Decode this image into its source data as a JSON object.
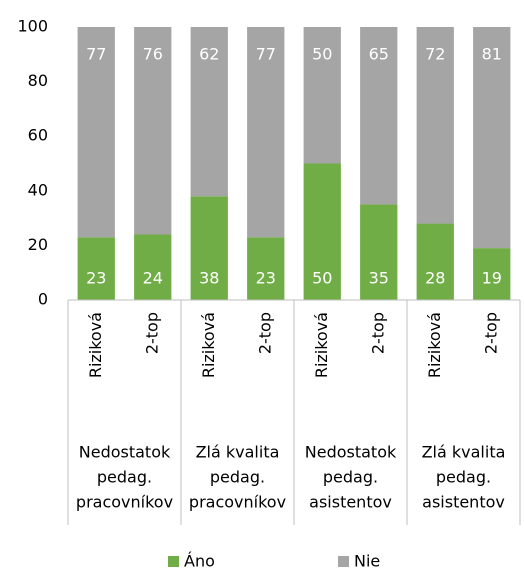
{
  "chart_data": {
    "type": "stacked_bar",
    "categories": [
      "Riziková",
      "2-top",
      "Riziková",
      "2-top",
      "Riziková",
      "2-top",
      "Riziková",
      "2-top"
    ],
    "category_groups": [
      [
        "Nedostatok",
        "pedag.",
        "pracovníkov"
      ],
      [
        "Zlá kvalita",
        "pedag.",
        "pracovníkov"
      ],
      [
        "Nedostatok",
        "pedag.",
        "asistentov"
      ],
      [
        "Zlá kvalita",
        "pedag.",
        "asistentov"
      ]
    ],
    "series": [
      {
        "name": "Áno",
        "color": "#70ad47",
        "values": [
          23,
          24,
          38,
          23,
          50,
          35,
          28,
          19
        ]
      },
      {
        "name": "Nie",
        "color": "#a5a5a5",
        "values": [
          77,
          76,
          62,
          77,
          50,
          65,
          72,
          81
        ]
      }
    ],
    "ylim": [
      0,
      100
    ],
    "yticks": [
      0,
      20,
      40,
      60,
      80,
      100
    ],
    "grid": false,
    "legend": "bottom"
  }
}
